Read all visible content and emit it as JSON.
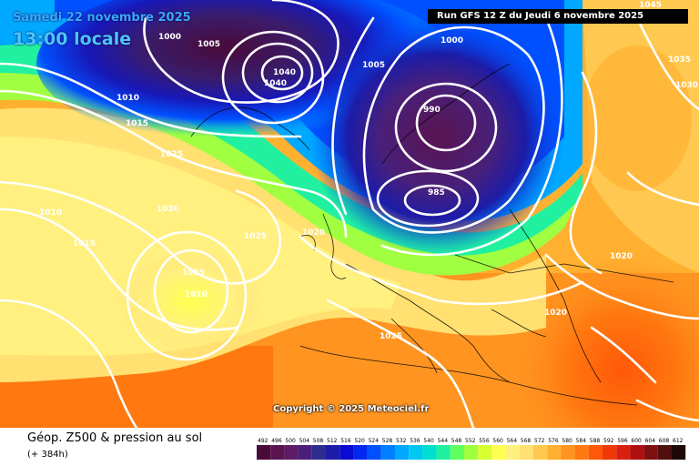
{
  "header": {
    "date": "Samedi 22 novembre 2025",
    "local_time": "13:00 locale",
    "run": "Run GFS 12 Z du Jeudi 6 novembre 2025"
  },
  "copyright": "Copyright © 2025 Meteociel.fr",
  "footer": {
    "title": "Géop. Z500 & pression au sol",
    "lead": "(+ 384h)"
  },
  "legend": {
    "values": [
      "492",
      "496",
      "500",
      "504",
      "508",
      "512",
      "516",
      "520",
      "524",
      "528",
      "532",
      "536",
      "540",
      "544",
      "548",
      "552",
      "556",
      "560",
      "564",
      "568",
      "572",
      "576",
      "580",
      "584",
      "588",
      "592",
      "596",
      "600",
      "604",
      "608",
      "612"
    ],
    "colors": [
      "#4a0a3a",
      "#5a1450",
      "#5e1c66",
      "#48207a",
      "#2e2c8e",
      "#1c1ca8",
      "#0a0ad0",
      "#0028f0",
      "#0050ff",
      "#0080ff",
      "#00a8ff",
      "#00c8f0",
      "#00e0d0",
      "#20f0a0",
      "#60ff60",
      "#a0ff40",
      "#d8ff30",
      "#ffff50",
      "#fff080",
      "#ffe070",
      "#ffc850",
      "#ffb030",
      "#ff9420",
      "#ff7810",
      "#ff5808",
      "#f03808",
      "#d82010",
      "#b01010",
      "#801010",
      "#501010",
      "#200808"
    ]
  },
  "isobar_labels": [
    "1045",
    "1000",
    "1005",
    "1035",
    "1030",
    "1040",
    "1010",
    "1015",
    "1025",
    "1030",
    "1040",
    "990",
    "985",
    "1000",
    "1020",
    "1010",
    "1015",
    "1025",
    "1015",
    "1005",
    "1010",
    "1020",
    "1025",
    "1020"
  ]
}
